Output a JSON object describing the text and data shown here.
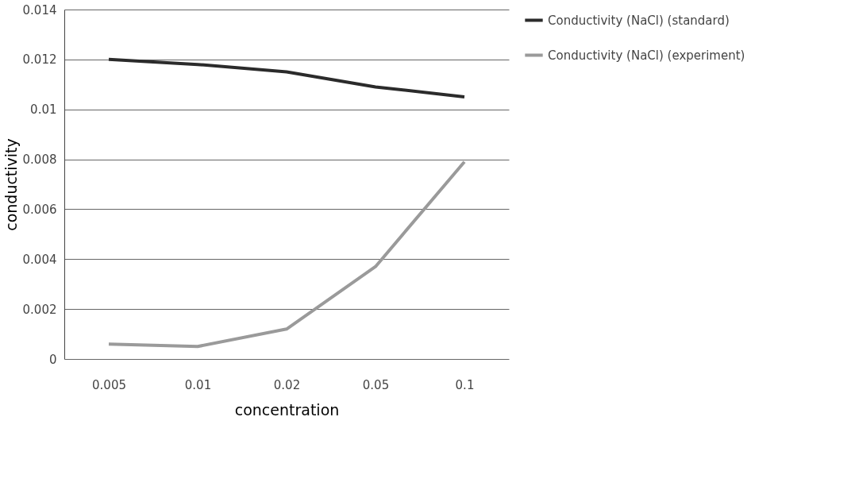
{
  "chart_data": {
    "type": "line",
    "xlabel": "concentration",
    "ylabel": "conductivity",
    "categories": [
      "0.005",
      "0.01",
      "0.02",
      "0.05",
      "0.1"
    ],
    "series": [
      {
        "name": "Conductivity (NaCl) (standard)",
        "color": "#2b2b2b",
        "values": [
          0.012,
          0.0118,
          0.0115,
          0.0109,
          0.0105
        ]
      },
      {
        "name": "Conductivity (NaCl) (experiment)",
        "color": "#9a9a9a",
        "values": [
          0.0006,
          0.0005,
          0.0012,
          0.0037,
          0.0079
        ]
      }
    ],
    "ylim": [
      0,
      0.014
    ],
    "yticks": [
      0,
      0.002,
      0.004,
      0.006,
      0.008,
      0.01,
      0.012,
      0.014
    ],
    "grid": "y",
    "legend": "right",
    "marker": "none",
    "line_style": "solid"
  }
}
